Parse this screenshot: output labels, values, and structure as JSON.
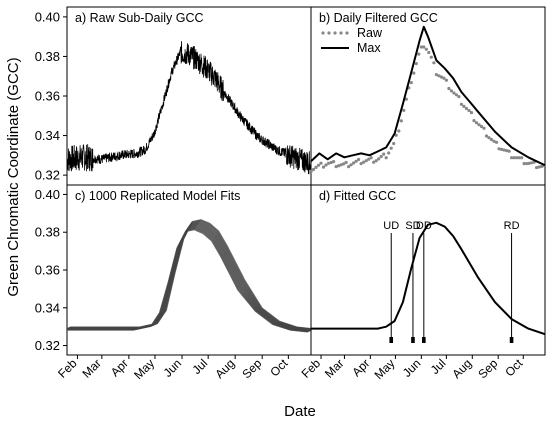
{
  "figure": {
    "ylabel": "Green Chromatic Coordinate (GCC)",
    "xlabel": "Date"
  },
  "chart_data": [
    {
      "id": "a",
      "type": "line",
      "title": "a)  Raw Sub-Daily GCC",
      "xlim": [
        20,
        300
      ],
      "ylim": [
        0.315,
        0.405
      ],
      "yticks": [
        0.32,
        0.34,
        0.36,
        0.38,
        0.4
      ],
      "yticklabels": [
        "0.32",
        "0.34",
        "0.36",
        "0.38",
        "0.40"
      ],
      "series": [
        {
          "style": "noisy",
          "color": "#000000",
          "x": [
            20,
            40,
            60,
            80,
            100,
            110,
            120,
            130,
            140,
            150,
            160,
            170,
            180,
            190,
            200,
            220,
            240,
            260,
            280,
            300
          ],
          "y": [
            0.328,
            0.329,
            0.328,
            0.33,
            0.331,
            0.333,
            0.341,
            0.356,
            0.372,
            0.382,
            0.381,
            0.378,
            0.374,
            0.369,
            0.362,
            0.349,
            0.339,
            0.333,
            0.329,
            0.326
          ]
        }
      ]
    },
    {
      "id": "b",
      "type": "line",
      "title": "b) Daily Filtered GCC",
      "xlim": [
        20,
        300
      ],
      "ylim": [
        0.315,
        0.405
      ],
      "legend": {
        "position": "top-left",
        "entries": [
          "Raw",
          "Max"
        ]
      },
      "series": [
        {
          "name": "Raw",
          "style": "dotted",
          "color": "#888888",
          "x": [
            20,
            40,
            60,
            80,
            100,
            110,
            120,
            130,
            140,
            150,
            155,
            160,
            165,
            170,
            180,
            190,
            200,
            220,
            240,
            260,
            280,
            300
          ],
          "y": [
            0.323,
            0.326,
            0.325,
            0.327,
            0.328,
            0.33,
            0.336,
            0.351,
            0.368,
            0.382,
            0.386,
            0.383,
            0.378,
            0.372,
            0.368,
            0.362,
            0.357,
            0.346,
            0.336,
            0.33,
            0.326,
            0.324
          ]
        },
        {
          "name": "Max",
          "style": "solid",
          "color": "#000000",
          "x": [
            20,
            30,
            40,
            50,
            60,
            70,
            80,
            90,
            100,
            110,
            120,
            130,
            140,
            150,
            155,
            160,
            165,
            170,
            180,
            190,
            200,
            210,
            220,
            240,
            260,
            280,
            290,
            300
          ],
          "y": [
            0.327,
            0.331,
            0.328,
            0.331,
            0.329,
            0.33,
            0.331,
            0.33,
            0.332,
            0.334,
            0.341,
            0.356,
            0.372,
            0.388,
            0.395,
            0.39,
            0.384,
            0.378,
            0.374,
            0.369,
            0.362,
            0.357,
            0.352,
            0.342,
            0.334,
            0.329,
            0.327,
            0.325
          ]
        }
      ]
    },
    {
      "id": "c",
      "type": "line",
      "title": "c)  1000 Replicated Model Fits",
      "xlim": [
        20,
        300
      ],
      "ylim": [
        0.315,
        0.405
      ],
      "yticks": [
        0.32,
        0.34,
        0.36,
        0.38,
        0.4
      ],
      "yticklabels": [
        "0.32",
        "0.34",
        "0.36",
        "0.38",
        "0.40"
      ],
      "xticks": [
        32,
        60,
        91,
        121,
        152,
        182,
        213,
        244,
        274
      ],
      "xticklabels": [
        "Feb",
        "Mar",
        "Apr",
        "May",
        "Jun",
        "Jul",
        "Aug",
        "Sep",
        "Oct"
      ],
      "series": [
        {
          "style": "band",
          "color": "#444444",
          "x": [
            20,
            60,
            100,
            120,
            130,
            140,
            150,
            160,
            170,
            180,
            190,
            200,
            220,
            240,
            260,
            280,
            300
          ],
          "y": [
            0.329,
            0.329,
            0.329,
            0.331,
            0.338,
            0.356,
            0.374,
            0.383,
            0.384,
            0.382,
            0.378,
            0.37,
            0.352,
            0.339,
            0.332,
            0.329,
            0.328
          ]
        }
      ]
    },
    {
      "id": "d",
      "type": "line",
      "title": "d)  Fitted GCC",
      "xlim": [
        20,
        300
      ],
      "ylim": [
        0.315,
        0.405
      ],
      "xticks": [
        32,
        60,
        91,
        121,
        152,
        182,
        213,
        244,
        274
      ],
      "xticklabels": [
        "Feb",
        "Mar",
        "Apr",
        "May",
        "Jun",
        "Jul",
        "Aug",
        "Sep",
        "Oct"
      ],
      "series": [
        {
          "style": "solid",
          "color": "#000000",
          "x": [
            20,
            60,
            100,
            110,
            120,
            130,
            140,
            150,
            160,
            170,
            180,
            190,
            200,
            220,
            240,
            260,
            280,
            300
          ],
          "y": [
            0.329,
            0.329,
            0.329,
            0.33,
            0.333,
            0.343,
            0.361,
            0.377,
            0.384,
            0.385,
            0.383,
            0.378,
            0.371,
            0.356,
            0.343,
            0.334,
            0.329,
            0.326
          ]
        }
      ],
      "events": [
        {
          "label": "UD",
          "x": 116
        },
        {
          "label": "SD",
          "x": 142
        },
        {
          "label": "DD",
          "x": 155
        },
        {
          "label": "RD",
          "x": 260
        }
      ]
    }
  ]
}
